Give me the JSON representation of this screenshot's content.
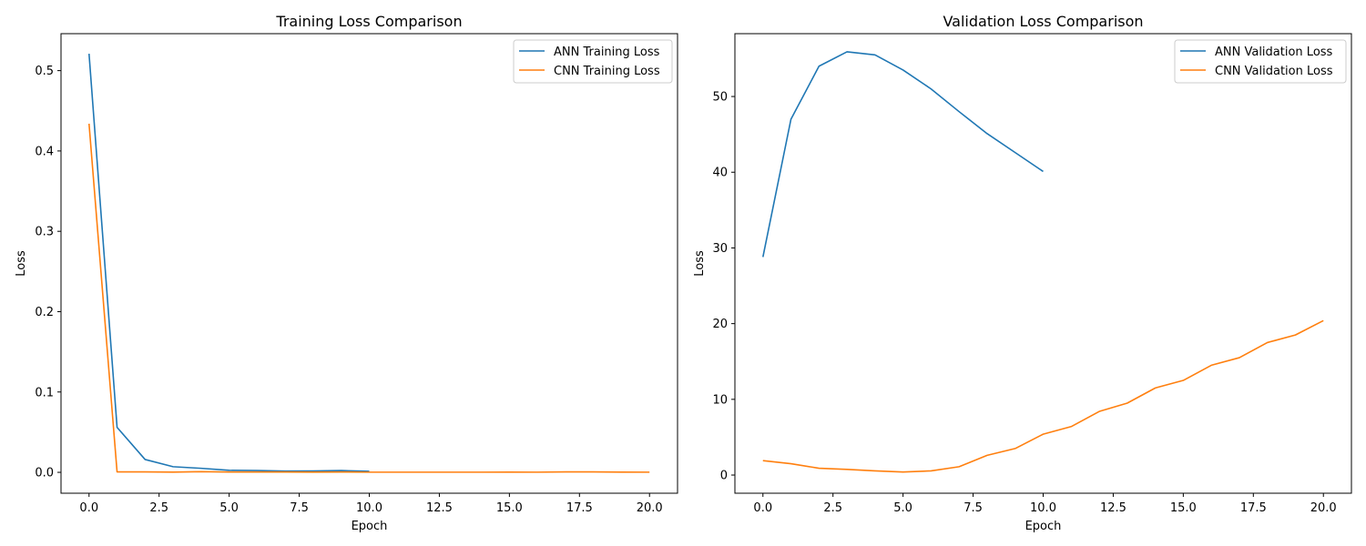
{
  "colors": {
    "ann": "#1f77b4",
    "cnn": "#ff7f0e",
    "axis": "#000000",
    "legend_border": "#cccccc"
  },
  "chart_data": [
    {
      "type": "line",
      "title": "Training Loss Comparison",
      "xlabel": "Epoch",
      "ylabel": "Loss",
      "xlim": [
        -1,
        21
      ],
      "ylim": [
        -0.026,
        0.546
      ],
      "xticks": [
        0.0,
        2.5,
        5.0,
        7.5,
        10.0,
        12.5,
        15.0,
        17.5,
        20.0
      ],
      "xtick_labels": [
        "0.0",
        "2.5",
        "5.0",
        "7.5",
        "10.0",
        "12.5",
        "15.0",
        "17.5",
        "20.0"
      ],
      "yticks": [
        0.0,
        0.1,
        0.2,
        0.3,
        0.4,
        0.5
      ],
      "ytick_labels": [
        "0.0",
        "0.1",
        "0.2",
        "0.3",
        "0.4",
        "0.5"
      ],
      "grid": false,
      "legend_position": "top-right",
      "series": [
        {
          "name": "ANN Training Loss",
          "color_key": "ann",
          "x": [
            0,
            1,
            2,
            3,
            4,
            5,
            6,
            7,
            8,
            9,
            10
          ],
          "y": [
            0.521,
            0.056,
            0.016,
            0.007,
            0.005,
            0.0025,
            0.0022,
            0.0015,
            0.0017,
            0.0022,
            0.0013
          ]
        },
        {
          "name": "CNN Training Loss",
          "color_key": "cnn",
          "x": [
            0,
            1,
            2,
            3,
            4,
            5,
            6,
            7,
            8,
            9,
            10,
            11,
            12,
            13,
            14,
            15,
            16,
            17,
            18,
            19,
            20
          ],
          "y": [
            0.434,
            0.0005,
            0.0006,
            0.0003,
            0.0008,
            0.0004,
            0.0004,
            0.0004,
            0.0003,
            0.0004,
            0.0002,
            0.0002,
            0.0002,
            0.0002,
            0.0002,
            0.0003,
            0.0002,
            0.0005,
            0.0006,
            0.0003,
            0.0002
          ]
        }
      ]
    },
    {
      "type": "line",
      "title": "Validation Loss Comparison",
      "xlabel": "Epoch",
      "ylabel": "Loss",
      "xlim": [
        -1,
        21
      ],
      "ylim": [
        -2.4,
        58.3
      ],
      "xticks": [
        0.0,
        2.5,
        5.0,
        7.5,
        10.0,
        12.5,
        15.0,
        17.5,
        20.0
      ],
      "xtick_labels": [
        "0.0",
        "2.5",
        "5.0",
        "7.5",
        "10.0",
        "12.5",
        "15.0",
        "17.5",
        "20.0"
      ],
      "yticks": [
        0,
        10,
        20,
        30,
        40,
        50
      ],
      "ytick_labels": [
        "0",
        "10",
        "20",
        "30",
        "40",
        "50"
      ],
      "grid": false,
      "legend_position": "top-right",
      "series": [
        {
          "name": "ANN Validation Loss",
          "color_key": "ann",
          "x": [
            0,
            1,
            2,
            3,
            4,
            5,
            6,
            7,
            8,
            9,
            10
          ],
          "y": [
            28.8,
            47.0,
            54.0,
            55.9,
            55.5,
            53.5,
            51.0,
            48.0,
            45.1,
            42.6,
            40.1
          ]
        },
        {
          "name": "CNN Validation Loss",
          "color_key": "cnn",
          "x": [
            0,
            1,
            2,
            3,
            4,
            5,
            6,
            7,
            8,
            9,
            10,
            11,
            12,
            13,
            14,
            15,
            16,
            17,
            18,
            19,
            20
          ],
          "y": [
            1.9,
            1.5,
            0.9,
            0.75,
            0.55,
            0.4,
            0.55,
            1.1,
            2.6,
            3.5,
            5.4,
            6.4,
            8.4,
            9.5,
            11.5,
            12.5,
            14.5,
            15.5,
            17.5,
            18.5,
            20.4
          ]
        }
      ]
    }
  ]
}
